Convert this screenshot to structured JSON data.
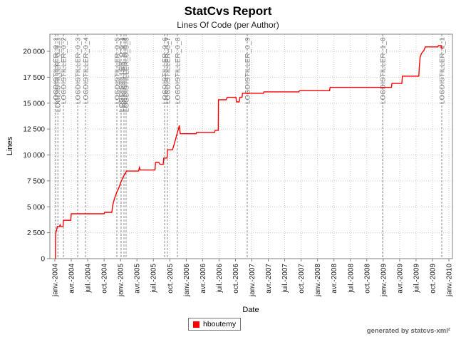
{
  "header": {
    "title": "StatCvs Report"
  },
  "footer": {
    "credit": "generated by statcvs-xml²"
  },
  "chart_data": {
    "type": "line",
    "title": "Lines Of Code (per Author)",
    "xlabel": "Date",
    "ylabel": "Lines",
    "grid": true,
    "legend_position": "bottom",
    "x_unit": "months_since_2004_01",
    "xlim": [
      -0.91,
      72.65
    ],
    "ylim": [
      0,
      21650
    ],
    "x_ticks": [
      {
        "m": 0,
        "label": "janv.-2004"
      },
      {
        "m": 3,
        "label": "avr.-2004"
      },
      {
        "m": 6,
        "label": "juil.-2004"
      },
      {
        "m": 9,
        "label": "oct.-2004"
      },
      {
        "m": 12,
        "label": "janv.-2005"
      },
      {
        "m": 15,
        "label": "avr.-2005"
      },
      {
        "m": 18,
        "label": "juil.-2005"
      },
      {
        "m": 21,
        "label": "oct.-2005"
      },
      {
        "m": 24,
        "label": "janv.-2006"
      },
      {
        "m": 27,
        "label": "avr.-2006"
      },
      {
        "m": 30,
        "label": "juil.-2006"
      },
      {
        "m": 33,
        "label": "oct.-2006"
      },
      {
        "m": 36,
        "label": "janv.-2007"
      },
      {
        "m": 39,
        "label": "avr.-2007"
      },
      {
        "m": 42,
        "label": "juil.-2007"
      },
      {
        "m": 45,
        "label": "oct.-2007"
      },
      {
        "m": 48,
        "label": "janv.-2008"
      },
      {
        "m": 51,
        "label": "avr.-2008"
      },
      {
        "m": 54,
        "label": "juil.-2008"
      },
      {
        "m": 57,
        "label": "oct.-2008"
      },
      {
        "m": 60,
        "label": "janv.-2009"
      },
      {
        "m": 63,
        "label": "avr.-2009"
      },
      {
        "m": 66,
        "label": "juil.-2009"
      },
      {
        "m": 69,
        "label": "oct.-2009"
      },
      {
        "m": 72,
        "label": "janv.-2010"
      }
    ],
    "y_ticks": [
      {
        "v": 0,
        "label": "0"
      },
      {
        "v": 2500,
        "label": "2 500"
      },
      {
        "v": 5000,
        "label": "5 000"
      },
      {
        "v": 7500,
        "label": "7 500"
      },
      {
        "v": 10000,
        "label": "10 000"
      },
      {
        "v": 12500,
        "label": "12 500"
      },
      {
        "v": 15000,
        "label": "15 000"
      },
      {
        "v": 17500,
        "label": "17 500"
      },
      {
        "v": 20000,
        "label": "20 000"
      }
    ],
    "release_tags": [
      {
        "m": 0.13,
        "label": "LOGDISTILLER_0_1"
      },
      {
        "m": 0.55,
        "label": "LOGDISTILLER_0_1_1"
      },
      {
        "m": 1.56,
        "label": "LOGDISTILLER_0_2"
      },
      {
        "m": 4.17,
        "label": "LOGDISTILLER_0_3"
      },
      {
        "m": 5.6,
        "label": "LOGDISTILLER_0_4"
      },
      {
        "m": 11.33,
        "label": "LOGDISTILLER_0_5"
      },
      {
        "m": 12.11,
        "label": "LOGDISTILLER_0_5_1"
      },
      {
        "m": 12.63,
        "label": "LOGDISTILLER_0_5_2"
      },
      {
        "m": 13.02,
        "label": "LOGDISTILLER_0_5_3"
      },
      {
        "m": 20.05,
        "label": "LOGDISTILLER_0_6"
      },
      {
        "m": 20.57,
        "label": "LOGDISTILLER_0_7"
      },
      {
        "m": 22.39,
        "label": "LOGDISTILLER_0_8"
      },
      {
        "m": 35.15,
        "label": "LOGDISTILLER_0_9"
      },
      {
        "m": 59.89,
        "label": "LOGDISTILLER_1_0"
      },
      {
        "m": 70.7,
        "label": "LOGDISTILLER_1_1"
      }
    ],
    "series": [
      {
        "name": "hboutemy",
        "color": "#ff0000",
        "points": [
          [
            0.0,
            0
          ],
          [
            0.1,
            0
          ],
          [
            0.1,
            1200
          ],
          [
            0.15,
            2500
          ],
          [
            0.3,
            2700
          ],
          [
            0.45,
            3100
          ],
          [
            0.85,
            3100
          ],
          [
            0.95,
            3250
          ],
          [
            1.05,
            3100
          ],
          [
            1.5,
            3100
          ],
          [
            1.56,
            3700
          ],
          [
            2.9,
            3700
          ],
          [
            3.0,
            4330
          ],
          [
            9.0,
            4330
          ],
          [
            9.1,
            4470
          ],
          [
            10.4,
            4470
          ],
          [
            10.6,
            5200
          ],
          [
            10.9,
            5800
          ],
          [
            11.3,
            6400
          ],
          [
            11.6,
            6700
          ],
          [
            11.85,
            7050
          ],
          [
            12.1,
            7400
          ],
          [
            12.5,
            7900
          ],
          [
            13.1,
            8450
          ],
          [
            15.3,
            8450
          ],
          [
            15.45,
            8800
          ],
          [
            15.6,
            8550
          ],
          [
            18.3,
            8550
          ],
          [
            18.4,
            9280
          ],
          [
            19.0,
            9280
          ],
          [
            19.2,
            9100
          ],
          [
            19.8,
            9100
          ],
          [
            19.9,
            9700
          ],
          [
            20.5,
            9700
          ],
          [
            20.6,
            10500
          ],
          [
            21.5,
            10500
          ],
          [
            21.9,
            11200
          ],
          [
            22.3,
            12000
          ],
          [
            22.55,
            12440
          ],
          [
            22.75,
            12850
          ],
          [
            22.9,
            12050
          ],
          [
            25.8,
            12050
          ],
          [
            25.9,
            12180
          ],
          [
            29.2,
            12180
          ],
          [
            29.3,
            12380
          ],
          [
            29.85,
            12380
          ],
          [
            29.9,
            15330
          ],
          [
            31.3,
            15330
          ],
          [
            31.5,
            15560
          ],
          [
            33.1,
            15560
          ],
          [
            33.2,
            15120
          ],
          [
            33.7,
            15120
          ],
          [
            33.8,
            15560
          ],
          [
            34.2,
            15560
          ],
          [
            34.3,
            15950
          ],
          [
            38.1,
            15950
          ],
          [
            38.2,
            16090
          ],
          [
            44.6,
            16090
          ],
          [
            44.7,
            16200
          ],
          [
            50.2,
            16200
          ],
          [
            50.3,
            16520
          ],
          [
            61.5,
            16520
          ],
          [
            61.6,
            16900
          ],
          [
            63.4,
            16900
          ],
          [
            63.5,
            17600
          ],
          [
            66.5,
            17600
          ],
          [
            66.6,
            18500
          ],
          [
            66.75,
            19450
          ],
          [
            67.0,
            19800
          ],
          [
            67.4,
            20050
          ],
          [
            67.7,
            20430
          ],
          [
            70.0,
            20430
          ],
          [
            70.1,
            20560
          ],
          [
            70.55,
            20560
          ],
          [
            70.65,
            20300
          ],
          [
            71.0,
            20300
          ]
        ]
      }
    ]
  }
}
